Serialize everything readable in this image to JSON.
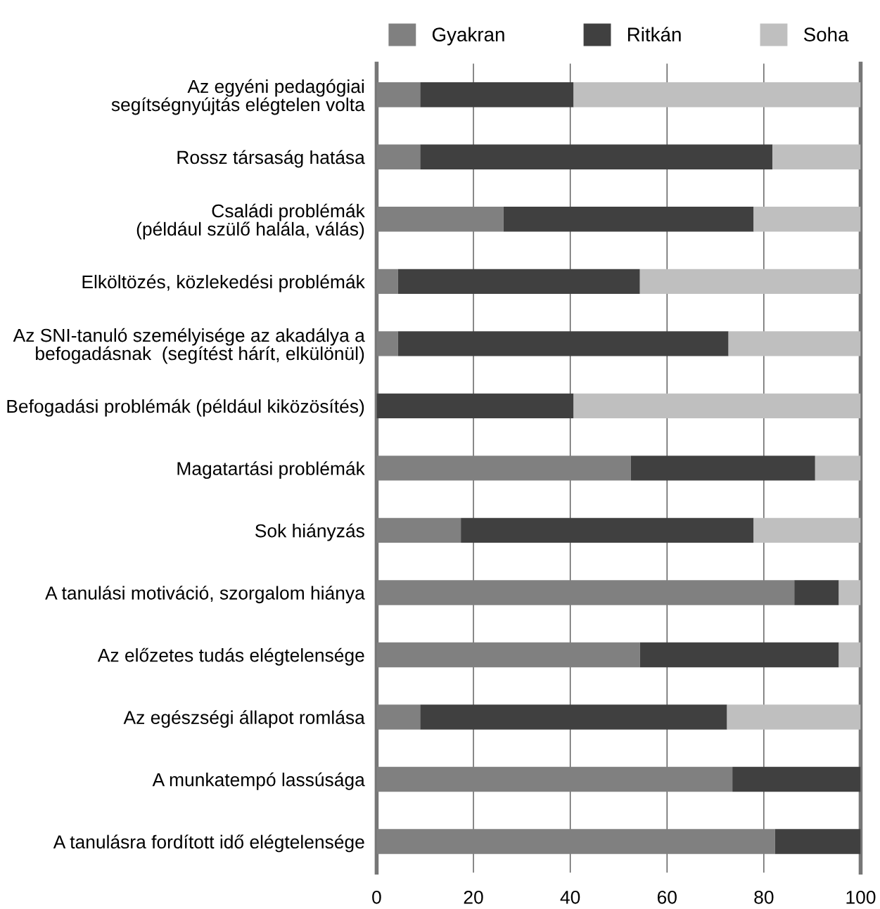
{
  "chart_data": {
    "type": "bar",
    "orientation": "horizontal",
    "stacked": true,
    "categories": [
      "Az egyéni pedagógiai\nsegítségnyújtás elégtelen volta",
      "Rossz társaság hatása",
      "Családi problémák\n(például szülő halála, válás)",
      "Elköltözés, közlekedési problémák",
      "Az SNI-tanuló személyisége az akadálya a\nbefogadásnak  (segítést hárít, elkülönül)",
      "Befogadási problémák (például kiközösítés)",
      "Magatartási problémák",
      "Sok hiányzás",
      "A tanulási motiváció, szorgalom hiánya",
      "Az előzetes tudás elégtelensége",
      "Az egészségi állapot romlása",
      "A munkatempó lassúsága",
      "A tanulásra fordított idő elégtelensége"
    ],
    "series": [
      {
        "name": "Gyakran",
        "color": "#808080",
        "values": [
          9,
          9,
          26.2,
          4.4,
          4.4,
          0,
          52.5,
          17.4,
          86.3,
          54.4,
          9,
          73.5,
          82.3
        ]
      },
      {
        "name": "Ritkán",
        "color": "#404040",
        "values": [
          31.7,
          72.8,
          51.7,
          50,
          68.3,
          40.7,
          38.1,
          60.5,
          9.2,
          41.1,
          63.4,
          26.5,
          17.7
        ]
      },
      {
        "name": "Soha",
        "color": "#bfbfbf",
        "values": [
          59.3,
          18.2,
          22.1,
          45.6,
          27.3,
          59.3,
          9.4,
          22.1,
          4.5,
          4.5,
          27.6,
          0,
          0
        ]
      }
    ],
    "xlim": [
      0,
      100
    ],
    "xticks": [
      0,
      20,
      40,
      60,
      80,
      100
    ],
    "grid": "x",
    "legend": "top"
  }
}
